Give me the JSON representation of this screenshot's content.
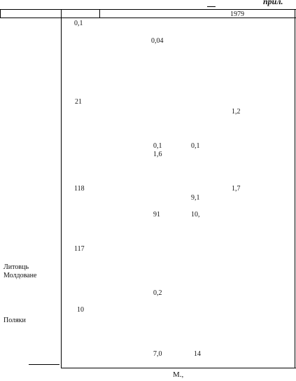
{
  "header": {
    "appendix_label": "прил.",
    "year": "1979"
  },
  "rows": {
    "litovtsy": "Литовць",
    "moldavane": "Молдоване",
    "polyaki": "Поляки"
  },
  "values": {
    "v01_top": "0,1",
    "v004": "0,04",
    "v21": "21",
    "v12": "1,2",
    "v01_a": "0,1",
    "v01_b": "0,1",
    "v16": "1,6",
    "v118": "118",
    "v17": "1,7",
    "v91": "9,1",
    "v91b": "91",
    "v10x": "10,",
    "v117": "117",
    "v02": "0,2",
    "v10": "10",
    "v70": "7,0",
    "v14": "14"
  },
  "footer": {
    "source": "М.,"
  }
}
